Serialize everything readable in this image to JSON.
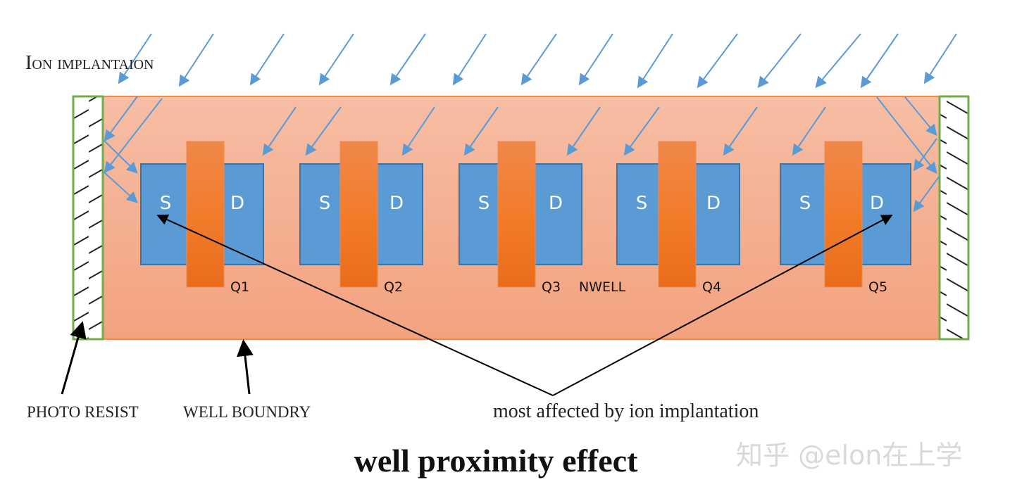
{
  "labels": {
    "ion_implantation": "Ion implantaion",
    "photo_resist": "PHOTO RESIST",
    "well_boundary": "WELL BOUNDRY",
    "most_affected": "most affected by ion implantation",
    "nwell": "NWELL",
    "title": "well proximity effect",
    "watermark": "知乎 @elon在上学"
  },
  "transistors": [
    {
      "name": "Q1",
      "source": "S",
      "drain": "D"
    },
    {
      "name": "Q2",
      "source": "S",
      "drain": "D"
    },
    {
      "name": "Q3",
      "source": "S",
      "drain": "D"
    },
    {
      "name": "Q4",
      "source": "S",
      "drain": "D"
    },
    {
      "name": "Q5",
      "source": "S",
      "drain": "D"
    }
  ],
  "colors": {
    "well_top": "#f6bea5",
    "well_bottom": "#f3a27f",
    "well_border": "#f08a4b",
    "diffusion": "#5b9bd5",
    "diffusion_border": "#41719c",
    "gate": "#ef7d32",
    "photoresist_border": "#70ad47",
    "ion_arrow": "#5b9bd5"
  }
}
